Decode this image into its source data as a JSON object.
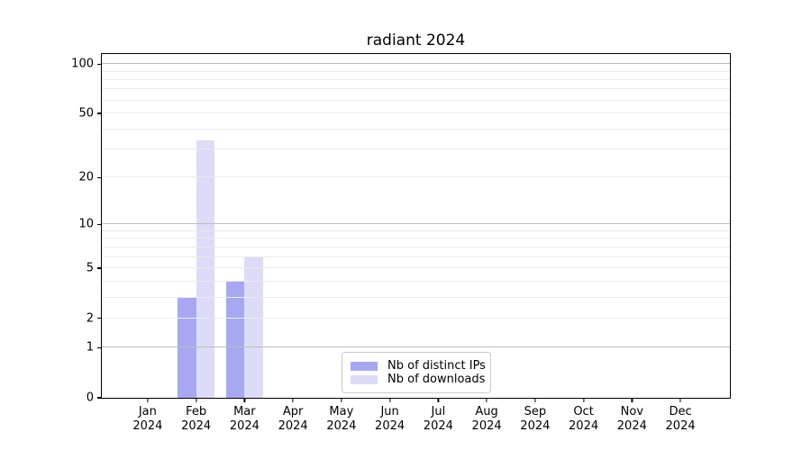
{
  "chart_data": {
    "type": "bar",
    "title": "radiant 2024",
    "categories": [
      "Jan\n2024",
      "Feb\n2024",
      "Mar\n2024",
      "Apr\n2024",
      "May\n2024",
      "Jun\n2024",
      "Jul\n2024",
      "Aug\n2024",
      "Sep\n2024",
      "Oct\n2024",
      "Nov\n2024",
      "Dec\n2024"
    ],
    "series": [
      {
        "name": "Nb of distinct IPs",
        "color": "#a8a8f2",
        "values": [
          0,
          3,
          4,
          0,
          0,
          0,
          0,
          0,
          0,
          0,
          0,
          0
        ]
      },
      {
        "name": "Nb of downloads",
        "color": "#dcdcf8",
        "values": [
          0,
          34,
          6,
          0,
          0,
          0,
          0,
          0,
          0,
          0,
          0,
          0
        ]
      }
    ],
    "xlabel": "",
    "ylabel": "",
    "yscale": "log1p",
    "ylim": [
      0,
      115
    ],
    "y_tick_labels": [
      0,
      1,
      2,
      5,
      10,
      20,
      50,
      100
    ],
    "y_major_gridlines": [
      1,
      10,
      100
    ],
    "y_minor_gridlines": [
      2,
      3,
      4,
      5,
      6,
      7,
      8,
      9,
      20,
      30,
      40,
      50,
      60,
      70,
      80,
      90
    ],
    "grid": true,
    "legend_position": "lower center",
    "colors": {
      "major_grid": "#bcbcbc",
      "minor_grid": "#eaeaea",
      "axis": "#000000",
      "text": "#000000",
      "legend_border": "#cccccc",
      "background": "#ffffff"
    }
  }
}
